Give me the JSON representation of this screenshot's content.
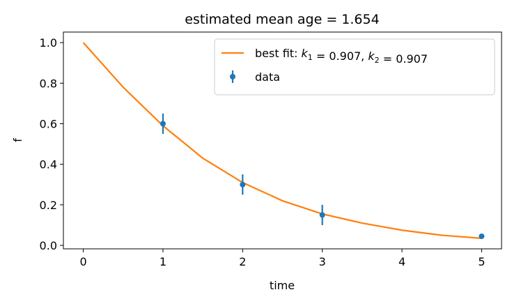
{
  "chart_data": {
    "type": "line",
    "title": "estimated mean age = 1.654",
    "x_label": "time",
    "y_label": "f",
    "xlim": [
      -0.25,
      5.25
    ],
    "ylim": [
      -0.017,
      1.052
    ],
    "xticks": [
      0,
      1,
      2,
      3,
      4,
      5
    ],
    "yticks": [
      {
        "value": 0,
        "label": "0.0"
      },
      {
        "value": 0.2,
        "label": "0.2"
      },
      {
        "value": 0.4,
        "label": "0.4"
      },
      {
        "value": 0.6,
        "label": "0.6"
      },
      {
        "value": 0.8,
        "label": "0.8"
      },
      {
        "value": 1,
        "label": "1.0"
      }
    ],
    "legend": "upper right",
    "series": [
      {
        "name": "best fit: k1 = 0.907, k2 = 0.907",
        "color": "#ff7f0e",
        "style": "line",
        "x": [
          0,
          0.5,
          1,
          1.5,
          2,
          2.5,
          3,
          3.5,
          4,
          4.5,
          5
        ],
        "values": [
          1.0,
          0.78,
          0.59,
          0.43,
          0.31,
          0.22,
          0.155,
          0.11,
          0.075,
          0.05,
          0.035
        ]
      },
      {
        "name": "data",
        "color": "#1f77b4",
        "style": "errorbar",
        "x": [
          1,
          2,
          3,
          5
        ],
        "values": [
          0.6,
          0.3,
          0.15,
          0.045
        ],
        "errors": [
          0.05,
          0.05,
          0.05,
          0.005
        ]
      }
    ]
  }
}
